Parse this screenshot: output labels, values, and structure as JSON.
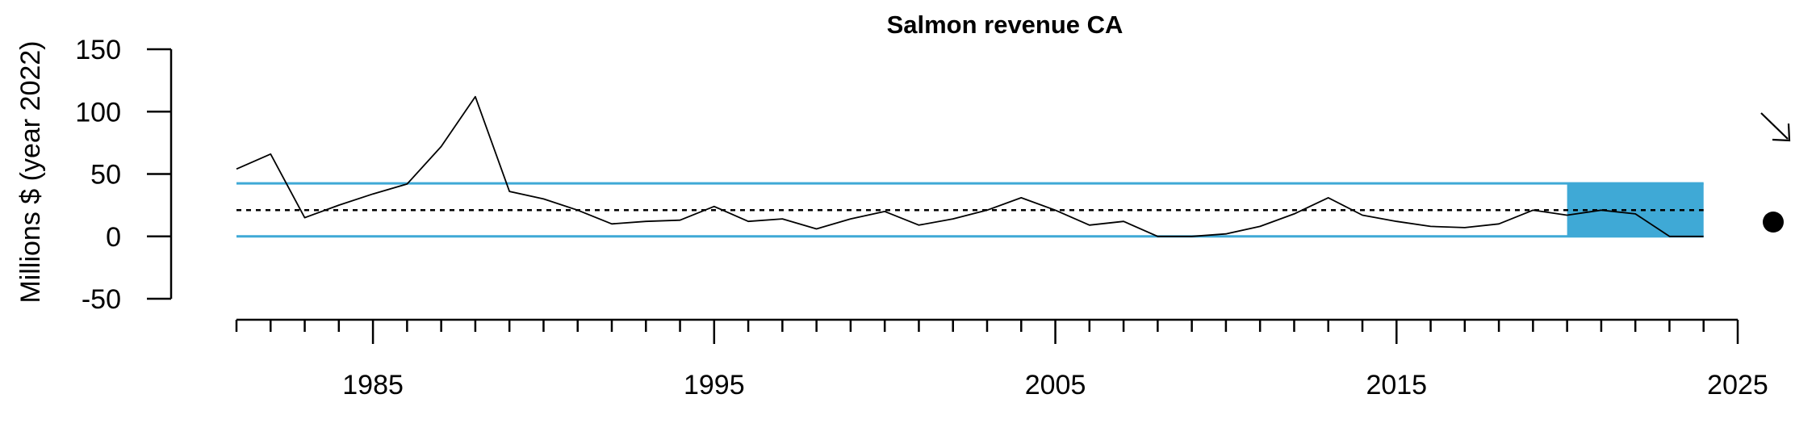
{
  "chart_data": {
    "type": "line",
    "title": "Salmon revenue CA",
    "xlabel": "",
    "ylabel": "Millions $ (year 2022)",
    "xlim": [
      1981,
      2025
    ],
    "ylim": [
      -50,
      150
    ],
    "yticks": [
      -50,
      0,
      50,
      100,
      150
    ],
    "ytick_labels": [
      "-50",
      "0",
      "50",
      "100",
      "150"
    ],
    "xticks_major": [
      1985,
      1995,
      2005,
      2015,
      2025
    ],
    "xtick_labels": [
      "1985",
      "1995",
      "2005",
      "2015",
      "2025"
    ],
    "xticks_minor_range": [
      1981,
      2024
    ],
    "grid": false,
    "series": [
      {
        "x": [
          1981,
          1982,
          1983,
          1984,
          1985,
          1986,
          1987,
          1988,
          1989,
          1990,
          1991,
          1992,
          1993,
          1994,
          1995,
          1996,
          1997,
          1998,
          1999,
          2000,
          2001,
          2002,
          2003,
          2004,
          2005,
          2006,
          2007,
          2008,
          2009,
          2010,
          2011,
          2012,
          2013,
          2014,
          2015,
          2016,
          2017,
          2018,
          2019,
          2020,
          2021,
          2022,
          2023,
          2024
        ],
        "values": [
          54,
          66,
          15,
          25,
          34,
          42,
          72,
          112,
          36,
          30,
          21,
          10,
          12,
          13,
          24,
          12,
          14,
          6,
          14,
          20,
          9,
          14,
          21,
          31,
          21,
          9,
          12,
          0,
          0,
          2,
          8,
          18,
          31,
          17,
          12,
          8,
          7,
          10,
          21,
          17,
          21,
          18,
          0,
          0
        ]
      }
    ],
    "reference_lines": {
      "mean": 21,
      "upper": 42.5,
      "lower": 0
    },
    "highlight_range_x": [
      2020,
      2024
    ],
    "colors": {
      "band": "#3FA9D6",
      "line": "#000000",
      "mean_line": "#000000"
    },
    "indicators": {
      "trend_symbol": "arrow-down-right",
      "status_symbol": "filled-circle"
    }
  }
}
